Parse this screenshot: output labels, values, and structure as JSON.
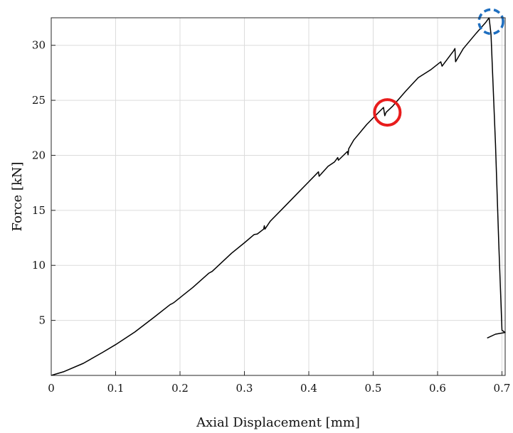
{
  "chart_data": {
    "type": "line",
    "title": "",
    "xlabel": "Axial Displacement [mm]",
    "ylabel": "Force [kN]",
    "xlim": [
      0,
      0.705
    ],
    "ylim": [
      0,
      32.5
    ],
    "grid": true,
    "x_ticks": [
      0,
      0.1,
      0.2,
      0.3,
      0.4,
      0.5,
      0.6,
      0.7
    ],
    "x_tick_labels": [
      "0",
      "0.1",
      "0.2",
      "0.3",
      "0.4",
      "0.5",
      "0.6",
      "0.7"
    ],
    "y_ticks": [
      5,
      10,
      15,
      20,
      25,
      30
    ],
    "y_tick_labels": [
      "5",
      "10",
      "15",
      "20",
      "25",
      "30"
    ],
    "series": [
      {
        "color": "#000000",
        "points": [
          [
            0,
            0.0
          ],
          [
            0.02,
            0.35
          ],
          [
            0.05,
            1.1
          ],
          [
            0.08,
            2.1
          ],
          [
            0.1,
            2.8
          ],
          [
            0.13,
            3.95
          ],
          [
            0.16,
            5.3
          ],
          [
            0.185,
            6.45
          ],
          [
            0.187,
            6.5
          ],
          [
            0.19,
            6.6
          ],
          [
            0.22,
            8.0
          ],
          [
            0.245,
            9.3
          ],
          [
            0.25,
            9.45
          ],
          [
            0.28,
            11.1
          ],
          [
            0.3,
            12.05
          ],
          [
            0.315,
            12.8
          ],
          [
            0.32,
            12.85
          ],
          [
            0.33,
            13.3
          ],
          [
            0.331,
            13.6
          ],
          [
            0.332,
            13.3
          ],
          [
            0.34,
            14.0
          ],
          [
            0.36,
            15.2
          ],
          [
            0.38,
            16.4
          ],
          [
            0.4,
            17.6
          ],
          [
            0.415,
            18.5
          ],
          [
            0.416,
            18.1
          ],
          [
            0.43,
            19.0
          ],
          [
            0.44,
            19.4
          ],
          [
            0.445,
            19.8
          ],
          [
            0.446,
            19.55
          ],
          [
            0.46,
            20.35
          ],
          [
            0.461,
            20.05
          ],
          [
            0.462,
            20.6
          ],
          [
            0.47,
            21.4
          ],
          [
            0.49,
            22.8
          ],
          [
            0.51,
            24.0
          ],
          [
            0.516,
            24.35
          ],
          [
            0.518,
            23.6
          ],
          [
            0.52,
            23.9
          ],
          [
            0.53,
            24.45
          ],
          [
            0.55,
            25.8
          ],
          [
            0.57,
            27.05
          ],
          [
            0.59,
            27.8
          ],
          [
            0.605,
            28.5
          ],
          [
            0.607,
            28.1
          ],
          [
            0.625,
            29.5
          ],
          [
            0.627,
            29.7
          ],
          [
            0.628,
            28.5
          ],
          [
            0.64,
            29.7
          ],
          [
            0.66,
            31.1
          ],
          [
            0.675,
            32.1
          ],
          [
            0.68,
            32.5
          ],
          [
            0.683,
            31.0
          ],
          [
            0.69,
            21.0
          ],
          [
            0.695,
            12.0
          ],
          [
            0.7,
            4.1
          ],
          [
            0.705,
            3.9
          ],
          [
            0.69,
            3.75
          ],
          [
            0.677,
            3.4
          ]
        ]
      }
    ],
    "annotations": [
      {
        "shape": "circle",
        "style": "solid",
        "color": "#e81c1c",
        "x": 0.522,
        "y": 23.9
      },
      {
        "shape": "circle",
        "style": "dashed",
        "color": "#1f6fc0",
        "x": 0.683,
        "y": 32.15
      }
    ]
  }
}
